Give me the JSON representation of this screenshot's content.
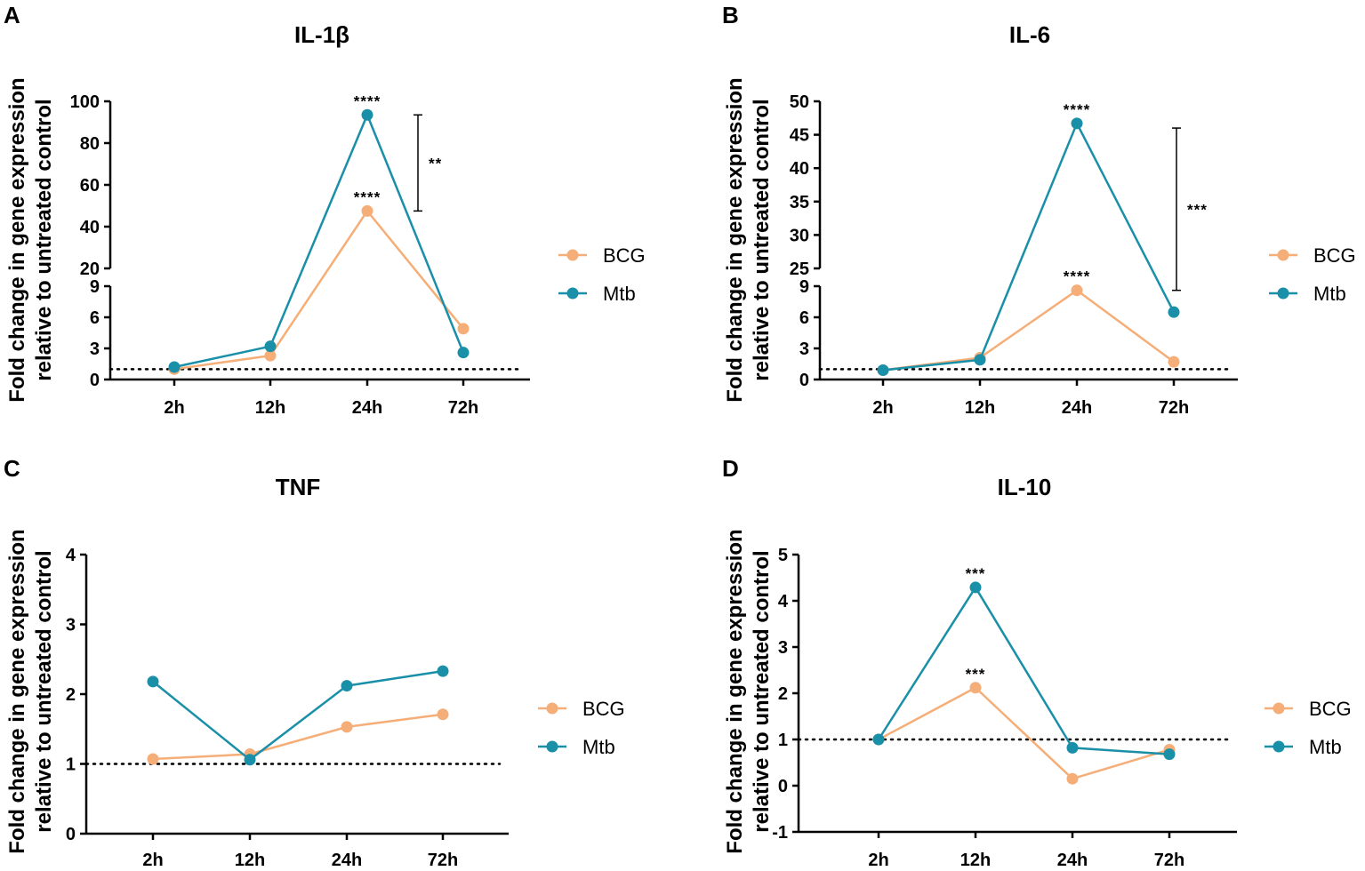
{
  "colors": {
    "BCG": "#f5ae78",
    "Mtb": "#1a8fa8",
    "axis": "#000000"
  },
  "chart_data": [
    {
      "panel": "A",
      "type": "line",
      "title": "IL-1β",
      "ylabel_line1": "Fold change in gene expression",
      "ylabel_line2": "relative to untreated control",
      "categories": [
        "2h",
        "12h",
        "24h",
        "72h"
      ],
      "baseline": 1,
      "y_break": {
        "lower": [
          0,
          9
        ],
        "lower_ticks": [
          "0",
          "3",
          "6",
          "9"
        ],
        "upper": [
          20,
          100
        ],
        "upper_ticks": [
          "20",
          "40",
          "60",
          "80",
          "100"
        ]
      },
      "series": [
        {
          "name": "BCG",
          "values": [
            1.0,
            2.3,
            47.5,
            4.9
          ]
        },
        {
          "name": "Mtb",
          "values": [
            1.2,
            3.2,
            93.5,
            2.6
          ]
        }
      ],
      "annotations": [
        {
          "text": "****",
          "series": "Mtb",
          "index": 2
        },
        {
          "text": "****",
          "series": "BCG",
          "index": 2
        }
      ],
      "bracket": {
        "text": "**",
        "from": 93.5,
        "to": 47.5
      }
    },
    {
      "panel": "B",
      "type": "line",
      "title": "IL-6",
      "ylabel_line1": "Fold change in gene expression",
      "ylabel_line2": "relative to untreated control",
      "categories": [
        "2h",
        "12h",
        "24h",
        "72h"
      ],
      "baseline": 1,
      "y_break": {
        "lower": [
          0,
          9
        ],
        "lower_ticks": [
          "0",
          "3",
          "6",
          "9"
        ],
        "upper": [
          25,
          50
        ],
        "upper_ticks": [
          "25",
          "30",
          "35",
          "40",
          "45",
          "50"
        ]
      },
      "series": [
        {
          "name": "BCG",
          "values": [
            0.9,
            2.1,
            8.6,
            1.7
          ]
        },
        {
          "name": "Mtb",
          "values": [
            0.9,
            1.9,
            46.7,
            6.5
          ]
        }
      ],
      "annotations": [
        {
          "text": "****",
          "series": "Mtb",
          "index": 2
        },
        {
          "text": "****",
          "series": "BCG",
          "index": 2
        }
      ],
      "bracket": {
        "text": "***",
        "from": 46.0,
        "to": 8.6
      }
    },
    {
      "panel": "C",
      "type": "line",
      "title": "TNF",
      "ylabel_line1": "Fold change in gene expression",
      "ylabel_line2": "relative to untreated control",
      "categories": [
        "2h",
        "12h",
        "24h",
        "72h"
      ],
      "baseline": 1,
      "ylim": [
        0,
        4
      ],
      "yticks": [
        "0",
        "1",
        "2",
        "3",
        "4"
      ],
      "series": [
        {
          "name": "BCG",
          "values": [
            1.07,
            1.14,
            1.53,
            1.71
          ]
        },
        {
          "name": "Mtb",
          "values": [
            2.18,
            1.06,
            2.12,
            2.33
          ]
        }
      ],
      "annotations": []
    },
    {
      "panel": "D",
      "type": "line",
      "title": "IL-10",
      "ylabel_line1": "Fold change in gene expression",
      "ylabel_line2": "relative to untreated control",
      "categories": [
        "2h",
        "12h",
        "24h",
        "72h"
      ],
      "baseline": 1,
      "ylim": [
        -1,
        5
      ],
      "yticks": [
        "-1",
        "0",
        "1",
        "2",
        "3",
        "4",
        "5"
      ],
      "series": [
        {
          "name": "BCG",
          "values": [
            1.0,
            2.12,
            0.15,
            0.78
          ]
        },
        {
          "name": "Mtb",
          "values": [
            1.0,
            4.29,
            0.82,
            0.68
          ]
        }
      ],
      "annotations": [
        {
          "text": "***",
          "series": "Mtb",
          "index": 1
        },
        {
          "text": "***",
          "series": "BCG",
          "index": 1
        }
      ]
    }
  ]
}
